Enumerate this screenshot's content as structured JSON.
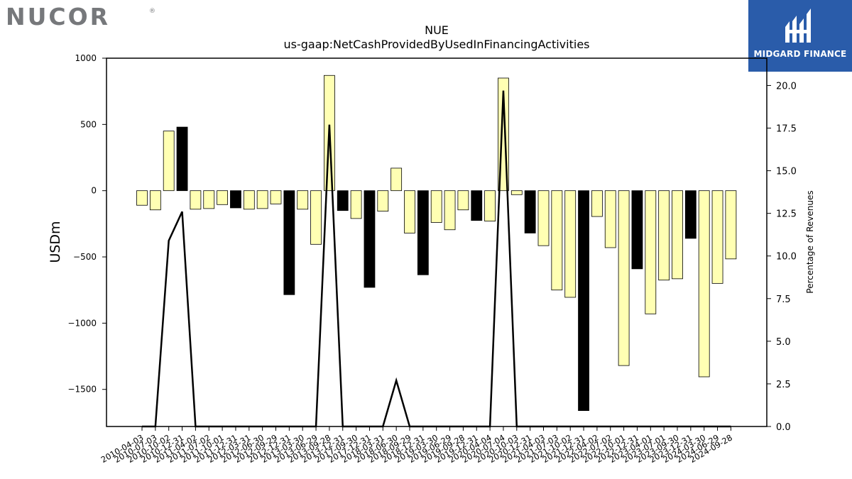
{
  "logos": {
    "left_brand": "NUCOR",
    "left_mark": "®",
    "right_brand": "MIDGARD FINANCE",
    "right_bg": "#2a5caa"
  },
  "chart_data": {
    "type": "bar",
    "title": "NUE",
    "subtitle": "us-gaap:NetCashProvidedByUsedInFinancingActivities",
    "ylabel": "USDm",
    "y2label": "Percentage of Revenues",
    "ylim": [
      -1780,
      1000
    ],
    "y2lim": [
      0,
      21.6
    ],
    "yticks": [
      1000,
      500,
      0,
      -500,
      -1000,
      -1500
    ],
    "ytick_labels": [
      "1000",
      "500",
      "0",
      "−500",
      "−1000",
      "−1500"
    ],
    "y2ticks": [
      0.0,
      2.5,
      5.0,
      7.5,
      10.0,
      12.5,
      15.0,
      17.5,
      20.0
    ],
    "y2tick_labels": [
      "0.0",
      "2.5",
      "5.0",
      "7.5",
      "10.0",
      "12.5",
      "15.0",
      "17.5",
      "20.0"
    ],
    "categories": [
      "2010-04-03",
      "2010-07-03",
      "2010-10-02",
      "2010-12-31",
      "2011-04-02",
      "2011-07-02",
      "2011-10-01",
      "2011-12-31",
      "2012-03-31",
      "2012-06-30",
      "2012-09-29",
      "2012-12-31",
      "2013-03-30",
      "2013-06-29",
      "2013-09-28",
      "2013-12-31",
      "2017-09-30",
      "2017-12-31",
      "2018-03-31",
      "2018-06-30",
      "2018-09-29",
      "2018-12-31",
      "2019-03-30",
      "2019-06-29",
      "2019-09-28",
      "2019-12-31",
      "2020-04-04",
      "2020-07-04",
      "2020-10-03",
      "2020-12-31",
      "2021-04-03",
      "2021-07-03",
      "2021-10-02",
      "2021-12-31",
      "2022-04-02",
      "2022-07-02",
      "2022-10-01",
      "2022-12-31",
      "2023-04-01",
      "2023-07-01",
      "2023-09-30",
      "2023-12-31",
      "2024-03-30",
      "2024-06-29",
      "2024-09-28"
    ],
    "series": [
      {
        "values": [
          -110,
          -145,
          450,
          480,
          -140,
          -135,
          -105,
          -130,
          -140,
          -135,
          -100,
          -785,
          -140,
          -405,
          870,
          -150,
          -210,
          -730,
          -155,
          170,
          -320,
          -635,
          -240,
          -295,
          -145,
          -225,
          -230,
          850,
          -30,
          -320,
          -415,
          -750,
          -805,
          -1660,
          -195,
          -430,
          -1320,
          -590,
          -930,
          -675,
          -665,
          -360,
          -1405,
          -700,
          -515
        ],
        "highlight": [
          false,
          false,
          false,
          true,
          false,
          false,
          false,
          true,
          false,
          false,
          false,
          true,
          false,
          false,
          false,
          true,
          false,
          true,
          false,
          false,
          false,
          true,
          false,
          false,
          false,
          true,
          false,
          false,
          false,
          true,
          false,
          false,
          false,
          true,
          false,
          false,
          false,
          true,
          false,
          false,
          false,
          true,
          false,
          false,
          false
        ]
      },
      {
        "axis": "right",
        "type": "line",
        "values": [
          0,
          0,
          10.9,
          12.6,
          0,
          0,
          0,
          0,
          0,
          0,
          0,
          0,
          0,
          0,
          17.7,
          0,
          0,
          0,
          0,
          2.7,
          0,
          0,
          0,
          0,
          0,
          0,
          0,
          19.7,
          0,
          0,
          0,
          0,
          0,
          0,
          0,
          0,
          0,
          0,
          0,
          0,
          0,
          0,
          0,
          0,
          0
        ]
      }
    ],
    "colors": {
      "bar_default": "#ffffb3",
      "bar_highlight": "#000000",
      "line": "#000000"
    }
  }
}
